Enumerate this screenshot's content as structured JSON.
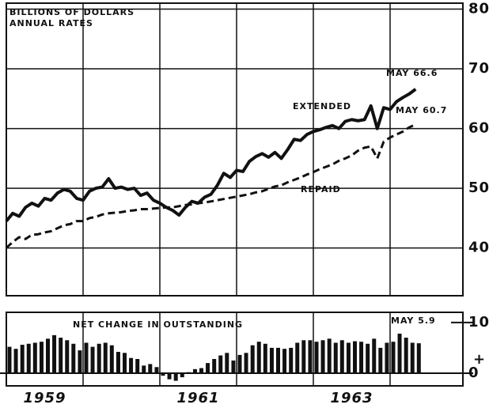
{
  "chart_data": [
    {
      "type": "line",
      "annotations": [
        "BILLIONS OF DOLLARS",
        "ANNUAL RATES",
        "EXTENDED",
        "REPAID",
        "MAY 66.6",
        "MAY 60.7"
      ],
      "xlim": [
        1959,
        1965
      ],
      "xgrid": [
        1960,
        1961,
        1962,
        1963,
        1964
      ],
      "ylim": [
        32,
        81
      ],
      "yticks": [
        40,
        50,
        60,
        70,
        80
      ],
      "grid": true,
      "x": [
        1959,
        1959.083,
        1959.167,
        1959.25,
        1959.333,
        1959.417,
        1959.5,
        1959.583,
        1959.667,
        1959.75,
        1959.833,
        1959.917,
        1960,
        1960.083,
        1960.167,
        1960.25,
        1960.333,
        1960.417,
        1960.5,
        1960.583,
        1960.667,
        1960.75,
        1960.833,
        1960.917,
        1961,
        1961.083,
        1961.167,
        1961.25,
        1961.333,
        1961.417,
        1961.5,
        1961.583,
        1961.667,
        1961.75,
        1961.833,
        1961.917,
        1962,
        1962.083,
        1962.167,
        1962.25,
        1962.333,
        1962.417,
        1962.5,
        1962.583,
        1962.667,
        1962.75,
        1962.833,
        1962.917,
        1963,
        1963.083,
        1963.167,
        1963.25,
        1963.333,
        1963.417,
        1963.5,
        1963.583,
        1963.667,
        1963.75,
        1963.833,
        1963.917,
        1964,
        1964.083,
        1964.167,
        1964.25,
        1964.333
      ],
      "series": [
        {
          "name": "EXTENDED",
          "color": "#111111",
          "dash": false,
          "values": [
            44.5,
            45.8,
            45.3,
            46.8,
            47.5,
            47.0,
            48.3,
            48.0,
            49.2,
            49.8,
            49.5,
            48.3,
            48.0,
            49.5,
            50.0,
            50.2,
            51.6,
            50.0,
            50.2,
            49.8,
            50.0,
            48.8,
            49.2,
            48.0,
            47.5,
            46.8,
            46.3,
            45.5,
            46.8,
            47.8,
            47.5,
            48.5,
            49.0,
            50.5,
            52.5,
            51.8,
            53.0,
            52.8,
            54.5,
            55.3,
            55.8,
            55.2,
            56.0,
            55.0,
            56.5,
            58.2,
            58.0,
            59.0,
            59.5,
            59.8,
            60.2,
            60.5,
            60.0,
            61.2,
            61.5,
            61.3,
            61.5,
            63.8,
            60.0,
            63.5,
            63.2,
            64.5,
            65.2,
            65.8,
            66.6
          ]
        },
        {
          "name": "REPAID",
          "color": "#111111",
          "dash": true,
          "values": [
            40.0,
            41.0,
            41.8,
            41.5,
            42.2,
            42.3,
            42.6,
            42.8,
            43.3,
            43.8,
            44.0,
            44.5,
            44.5,
            45.0,
            45.2,
            45.6,
            45.8,
            45.9,
            46.0,
            46.2,
            46.3,
            46.5,
            46.5,
            46.6,
            46.7,
            46.8,
            46.8,
            47.0,
            47.2,
            47.3,
            47.5,
            47.6,
            47.8,
            48.0,
            48.2,
            48.4,
            48.6,
            48.8,
            49.0,
            49.3,
            49.5,
            49.9,
            50.3,
            50.5,
            51.0,
            51.4,
            51.8,
            52.3,
            52.7,
            53.2,
            53.6,
            54.0,
            54.6,
            55.0,
            55.5,
            56.3,
            56.8,
            57.0,
            55.0,
            57.8,
            58.5,
            59.0,
            59.5,
            60.2,
            60.7
          ]
        }
      ]
    },
    {
      "type": "bar",
      "annotations": [
        "NET CHANGE IN OUTSTANDING",
        "MAY 5.9",
        "+"
      ],
      "xlim": [
        1959,
        1965
      ],
      "xgrid": [
        1960,
        1961,
        1962,
        1963,
        1964
      ],
      "xticks": [
        {
          "value": 1959.5,
          "label": "1959"
        },
        {
          "value": 1961.5,
          "label": "1961"
        },
        {
          "value": 1963.5,
          "label": "1963"
        }
      ],
      "ylim": [
        -2.5,
        12
      ],
      "yticks": [
        0,
        10
      ],
      "color": "#111111",
      "x": [
        1959,
        1959.083,
        1959.167,
        1959.25,
        1959.333,
        1959.417,
        1959.5,
        1959.583,
        1959.667,
        1959.75,
        1959.833,
        1959.917,
        1960,
        1960.083,
        1960.167,
        1960.25,
        1960.333,
        1960.417,
        1960.5,
        1960.583,
        1960.667,
        1960.75,
        1960.833,
        1960.917,
        1961,
        1961.083,
        1961.167,
        1961.25,
        1961.333,
        1961.417,
        1961.5,
        1961.583,
        1961.667,
        1961.75,
        1961.833,
        1961.917,
        1962,
        1962.083,
        1962.167,
        1962.25,
        1962.333,
        1962.417,
        1962.5,
        1962.583,
        1962.667,
        1962.75,
        1962.833,
        1962.917,
        1963,
        1963.083,
        1963.167,
        1963.25,
        1963.333,
        1963.417,
        1963.5,
        1963.583,
        1963.667,
        1963.75,
        1963.833,
        1963.917,
        1964,
        1964.083,
        1964.167,
        1964.25,
        1964.333
      ],
      "values": [
        5.2,
        4.8,
        5.6,
        5.8,
        6.0,
        6.2,
        6.8,
        7.5,
        7.0,
        6.5,
        5.8,
        4.5,
        6.0,
        5.2,
        5.8,
        6.0,
        5.5,
        4.2,
        4.0,
        3.0,
        2.8,
        1.5,
        1.8,
        1.2,
        -0.5,
        -1.2,
        -1.5,
        -0.8,
        0.2,
        0.8,
        1.0,
        2.0,
        2.8,
        3.5,
        4.0,
        2.5,
        3.6,
        4.0,
        5.5,
        6.2,
        5.8,
        5.0,
        5.0,
        4.8,
        5.0,
        6.0,
        6.5,
        6.5,
        6.2,
        6.5,
        6.8,
        6.0,
        6.5,
        6.0,
        6.3,
        6.2,
        5.8,
        6.8,
        5.0,
        6.0,
        6.2,
        7.8,
        7.0,
        6.0,
        5.9
      ]
    }
  ]
}
